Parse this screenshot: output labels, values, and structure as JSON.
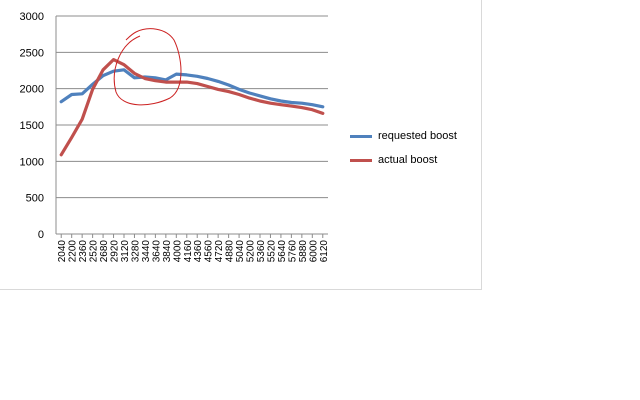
{
  "chart_data": {
    "type": "line",
    "title": "",
    "xlabel": "",
    "ylabel": "",
    "ylim": [
      0,
      3000
    ],
    "yticks": [
      0,
      500,
      1000,
      1500,
      2000,
      2500,
      3000
    ],
    "x_tick_labels": [
      "2040",
      "2200",
      "2360",
      "2520",
      "2680",
      "2920",
      "3120",
      "3280",
      "3440",
      "3640",
      "3840",
      "4000",
      "4160",
      "4360",
      "4560",
      "4720",
      "4880",
      "5040",
      "5200",
      "5360",
      "5520",
      "5640",
      "5760",
      "5880",
      "6000",
      "6120"
    ],
    "legend_position": "right",
    "grid": "horizontal",
    "annotations": [
      "hand-drawn circle around 2920–3840"
    ],
    "series": [
      {
        "name": "requested boost",
        "color": "#4f81bd",
        "values": [
          1820,
          1920,
          1930,
          2060,
          2180,
          2240,
          2260,
          2150,
          2160,
          2150,
          2120,
          2200,
          2190,
          2170,
          2140,
          2100,
          2050,
          1990,
          1940,
          1900,
          1860,
          1830,
          1810,
          1800,
          1780,
          1750
        ]
      },
      {
        "name": "actual boost",
        "color": "#c0504d",
        "values": [
          1090,
          1330,
          1580,
          1990,
          2260,
          2400,
          2330,
          2210,
          2140,
          2110,
          2090,
          2090,
          2090,
          2070,
          2030,
          1990,
          1960,
          1920,
          1870,
          1830,
          1800,
          1780,
          1760,
          1740,
          1710,
          1660
        ]
      }
    ]
  },
  "annotation_color": "#cc2222"
}
